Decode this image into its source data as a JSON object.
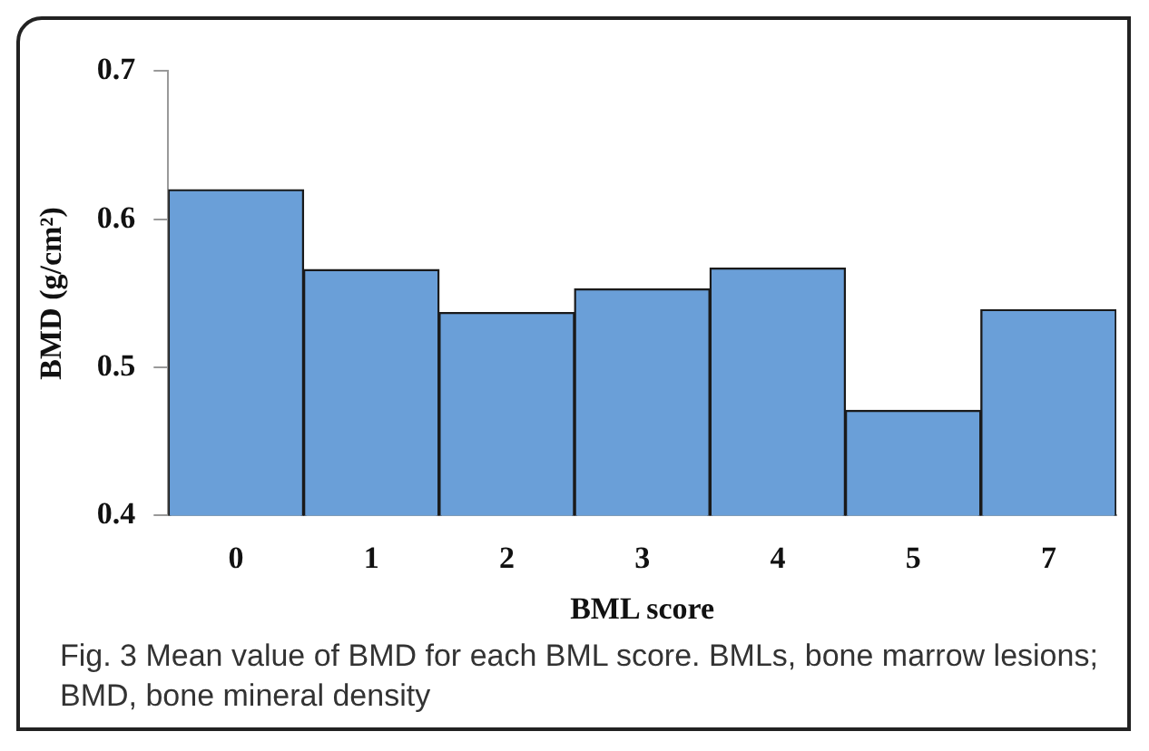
{
  "chart_data": {
    "type": "bar",
    "xlabel": "BML score",
    "ylabel": "BMD (g/cm²)",
    "categories": [
      "0",
      "1",
      "2",
      "3",
      "4",
      "5",
      "7"
    ],
    "values": [
      0.62,
      0.566,
      0.537,
      0.553,
      0.567,
      0.471,
      0.539
    ],
    "color": "#6a9fd8",
    "ylim": [
      0.4,
      0.7
    ],
    "yticks": [
      0.4,
      0.5,
      0.6,
      0.7
    ],
    "grid": false,
    "annotations": [
      "Fig. 3 Mean value of BMD for each BML score. BMLs, bone marrow lesions; BMD, bone mineral density"
    ]
  }
}
